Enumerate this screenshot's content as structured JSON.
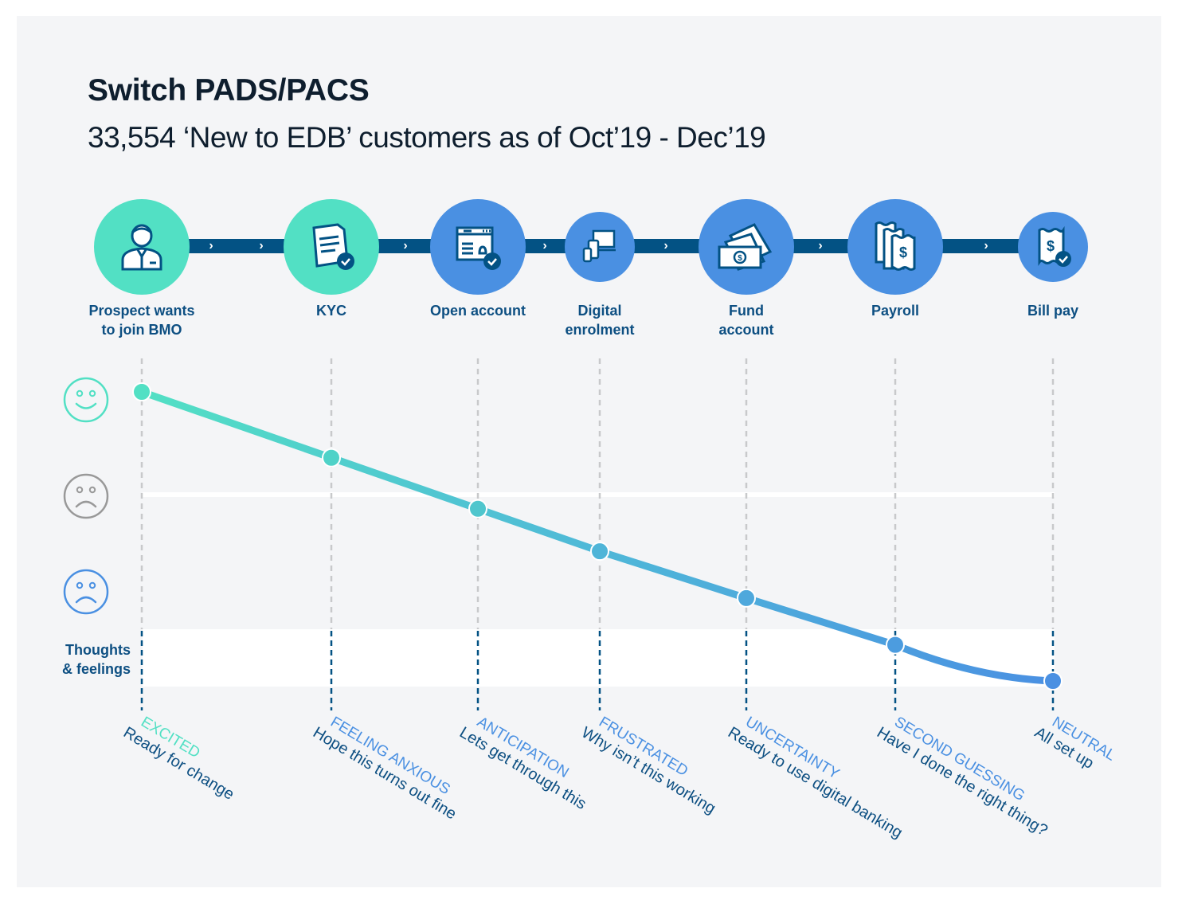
{
  "header": {
    "title": "Switch PADS/PACS",
    "subtitle": "33,554 ‘New to EDB’ customers as of Oct’19 - Dec’19"
  },
  "colors": {
    "teal": "#52e0c4",
    "blue": "#4a90e2",
    "navy": "#035284",
    "label": "#0d4f82",
    "neutral_face": "#999999"
  },
  "steps": [
    {
      "label": "Prospect wants to join BMO",
      "line1": "Prospect wants",
      "line2": "to join BMO",
      "icon": "person-icon",
      "color": "#52e0c4"
    },
    {
      "label": "KYC",
      "line1": "KYC",
      "line2": "",
      "icon": "document-check-icon",
      "color": "#52e0c4"
    },
    {
      "label": "Open account",
      "line1": "Open account",
      "line2": "",
      "icon": "browser-profile-check-icon",
      "color": "#4a90e2"
    },
    {
      "label": "Digital enrolment",
      "line1": "Digital",
      "line2": "enrolment",
      "icon": "devices-icon",
      "color": "#4a90e2"
    },
    {
      "label": "Fund account",
      "line1": "Fund",
      "line2": "account",
      "icon": "money-bills-icon",
      "color": "#4a90e2"
    },
    {
      "label": "Payroll",
      "line1": "Payroll",
      "line2": "",
      "icon": "receipts-icon",
      "color": "#4a90e2"
    },
    {
      "label": "Bill pay",
      "line1": "Bill pay",
      "line2": "",
      "icon": "receipt-check-icon",
      "color": "#4a90e2"
    }
  ],
  "emotion_scale": [
    {
      "name": "happy",
      "icon": "happy-face-icon"
    },
    {
      "name": "neutral-sad",
      "icon": "neutral-sad-face-icon"
    },
    {
      "name": "sad",
      "icon": "sad-face-icon"
    }
  ],
  "thoughts_label_line1": "Thoughts",
  "thoughts_label_line2": "& feelings",
  "chart_data": {
    "type": "line",
    "title": "Customer emotion journey",
    "x": [
      "Prospect wants to join BMO",
      "KYC",
      "Open account",
      "Digital enrolment",
      "Fund account",
      "Payroll",
      "Bill pay"
    ],
    "y_scale": "emotion (1 = happy, 0 = sad)",
    "values": [
      1.0,
      0.69,
      0.45,
      0.25,
      0.03,
      -0.19,
      -0.36
    ],
    "ylim": [
      -0.5,
      1.0
    ],
    "series": [
      {
        "name": "emotion",
        "values": [
          1.0,
          0.69,
          0.45,
          0.25,
          0.03,
          -0.19,
          -0.36
        ]
      }
    ]
  },
  "feelings": [
    {
      "title": "EXCITED",
      "desc": "Ready for change",
      "color": "#52e0c4"
    },
    {
      "title": "FEELING ANXIOUS",
      "desc": "Hope this turns out fine",
      "color": "#4a90e2"
    },
    {
      "title": "ANTICIPATION",
      "desc": "Lets get through this",
      "color": "#4a90e2"
    },
    {
      "title": "FRUSTRATED",
      "desc": "Why isn’t this working",
      "color": "#4a90e2"
    },
    {
      "title": "UNCERTAINTY",
      "desc": "Ready to use digital banking",
      "color": "#4a90e2"
    },
    {
      "title": "SECOND GUESSING",
      "desc": "Have I done the right thing?",
      "color": "#4a90e2"
    },
    {
      "title": "NEUTRAL",
      "desc": "All set up",
      "color": "#4a90e2"
    }
  ]
}
